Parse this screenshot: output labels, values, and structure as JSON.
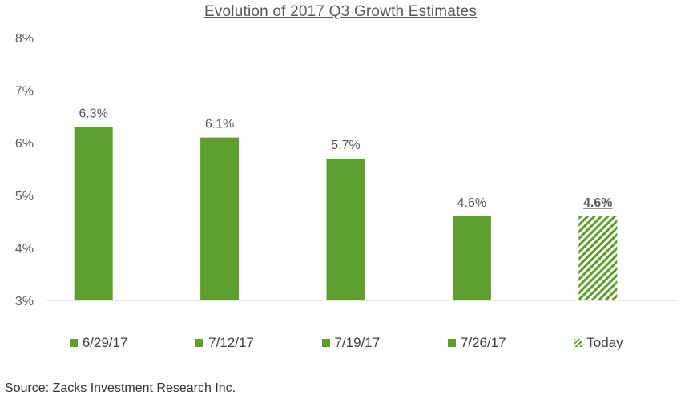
{
  "chart_data": {
    "type": "bar",
    "title": "Evolution  of 2017 Q3 Growth Estimates",
    "categories": [
      "6/29/17",
      "7/12/17",
      "7/19/17",
      "7/26/17",
      "Today"
    ],
    "values": [
      6.3,
      6.1,
      5.7,
      4.6,
      4.6
    ],
    "value_labels": [
      "6.3%",
      "6.1%",
      "5.7%",
      "4.6%",
      "4.6%"
    ],
    "y_ticks": [
      "3%",
      "4%",
      "5%",
      "6%",
      "7%",
      "8%"
    ],
    "ylim": [
      3,
      8
    ],
    "grid": false,
    "legend_position": "bottom",
    "colors": {
      "bar": "#5d9e2e",
      "hatch": "#5d9e2e",
      "axis": "#d0d0d0"
    },
    "styles": [
      "solid",
      "solid",
      "solid",
      "solid",
      "hatched"
    ]
  },
  "source": "Source: Zacks Investment Research Inc."
}
